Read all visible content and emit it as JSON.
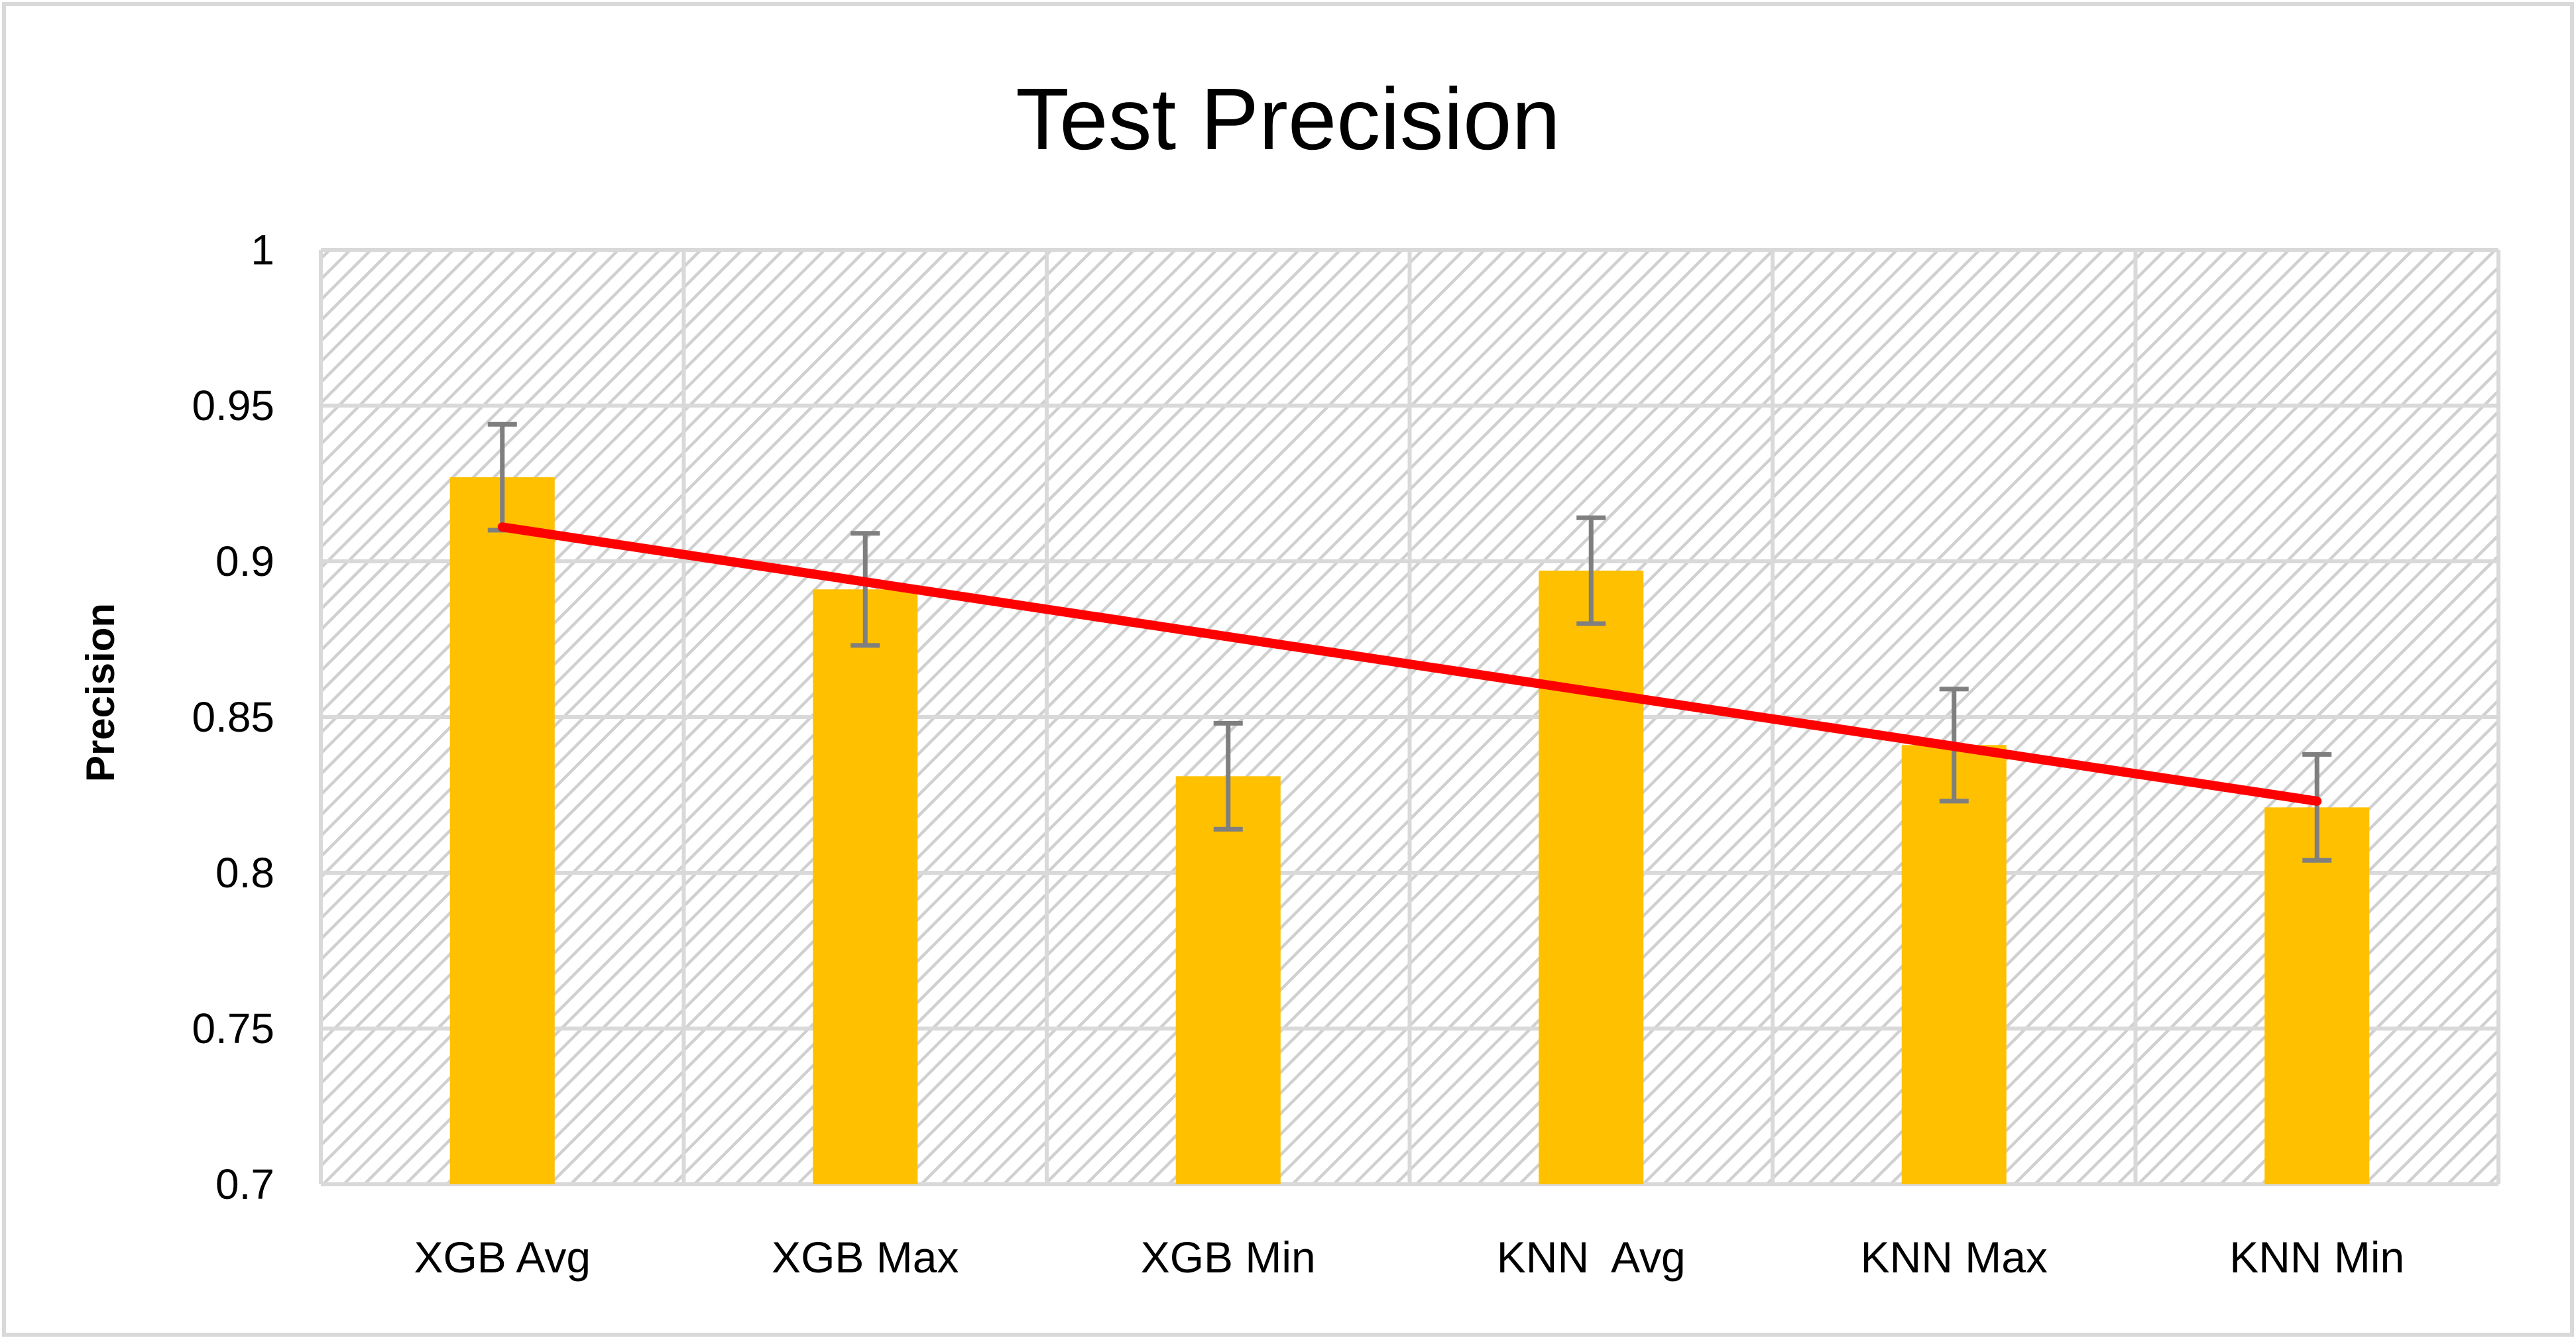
{
  "chart_data": {
    "type": "bar",
    "title": "Test Precision",
    "xlabel": "",
    "ylabel": "Precision",
    "ylim": [
      0.7,
      1.0
    ],
    "yticks": [
      "0.7",
      "0.75",
      "0.8",
      "0.85",
      "0.9",
      "0.95",
      "1"
    ],
    "ytick_values": [
      0.7,
      0.75,
      0.8,
      0.85,
      0.9,
      0.95,
      1.0
    ],
    "categories": [
      "XGB Avg",
      "XGB Max",
      "XGB Min",
      "KNN  Avg",
      "KNN Max",
      "KNN Min"
    ],
    "values": [
      0.927,
      0.891,
      0.831,
      0.897,
      0.841,
      0.821
    ],
    "error": [
      0.017,
      0.018,
      0.017,
      0.017,
      0.018,
      0.017
    ],
    "trendline": {
      "type": "linear",
      "start": 0.911,
      "end": 0.823
    },
    "grid": true,
    "legend": "none",
    "colors": {
      "bar": "#FFC000",
      "error_bar": "#7F7F7F",
      "trendline": "#FF0000",
      "grid": "#D9D9D9",
      "hatch": "#D0D0D0",
      "frame": "#D9D9D9"
    }
  }
}
